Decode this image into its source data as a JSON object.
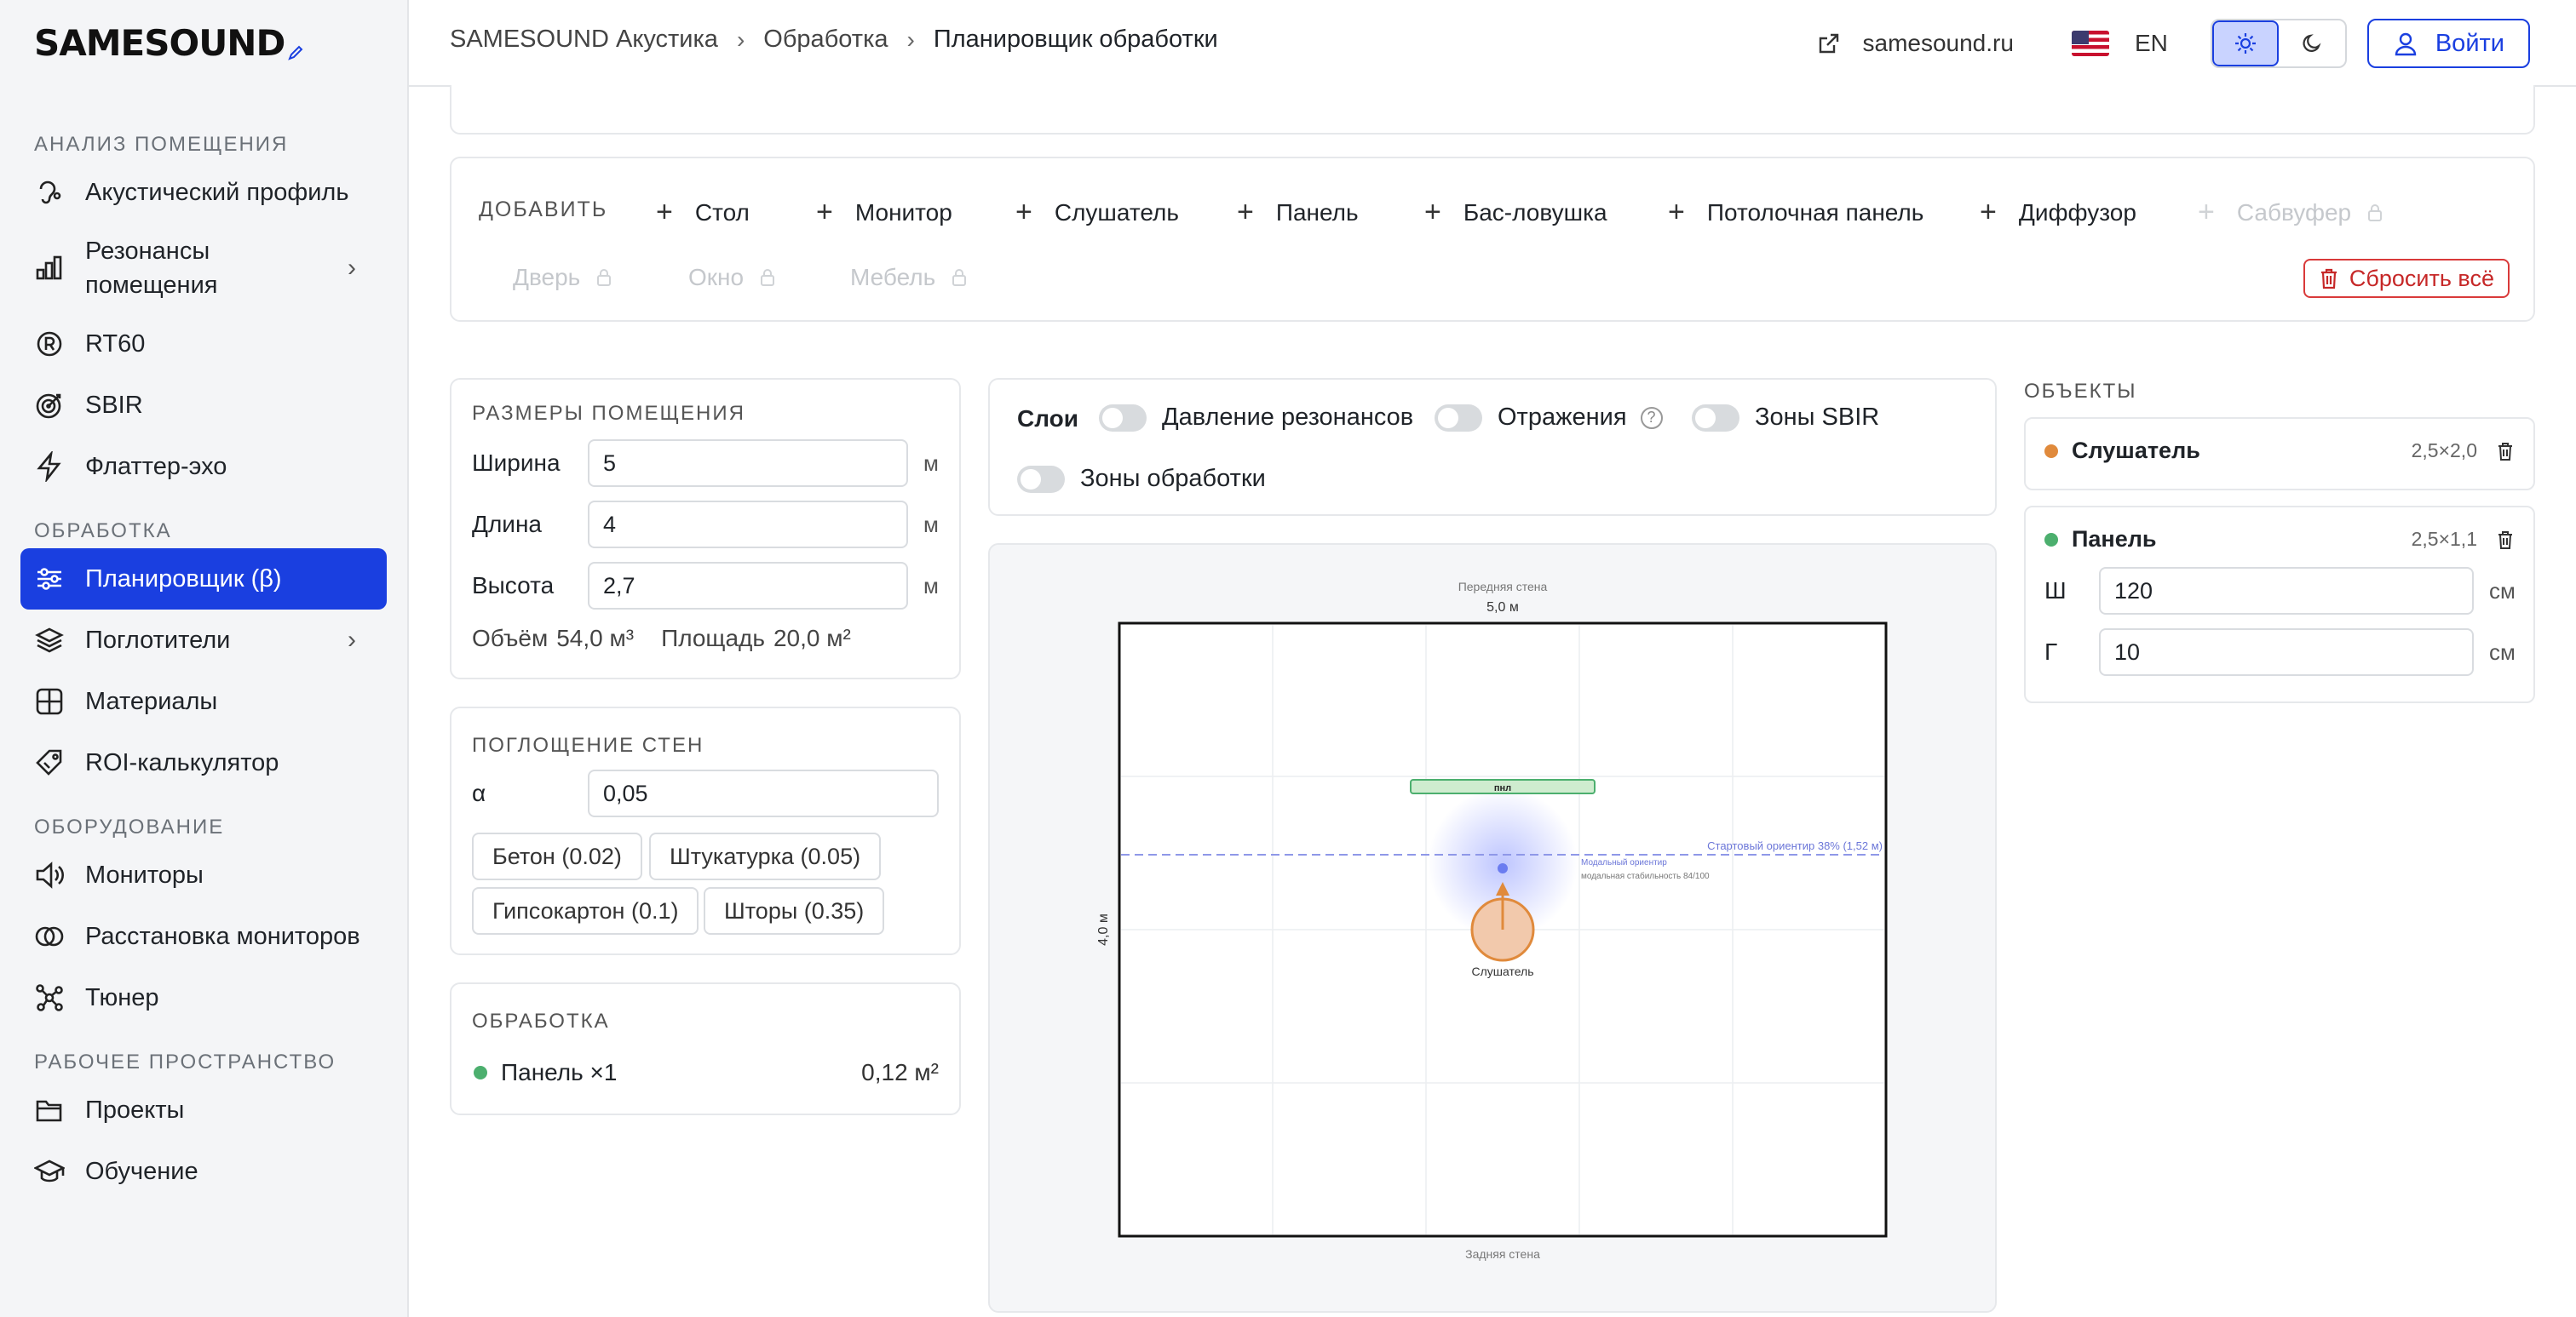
{
  "brand": "SAMESOUND",
  "sidebar": {
    "sections": [
      {
        "title": "АНАЛИЗ ПОМЕЩЕНИЯ",
        "items": [
          {
            "label": "Акустический профиль",
            "icon": "ear-icon"
          },
          {
            "label": "Резонансы помещения",
            "icon": "bar-chart-icon",
            "expandable": true
          },
          {
            "label": "RT60",
            "icon": "r-circle-icon"
          },
          {
            "label": "SBIR",
            "icon": "target-icon"
          },
          {
            "label": "Флаттер-эхо",
            "icon": "lightning-icon"
          }
        ]
      },
      {
        "title": "ОБРАБОТКА",
        "items": [
          {
            "label": "Планировщик (β)",
            "icon": "sliders-icon",
            "active": true
          },
          {
            "label": "Поглотители",
            "icon": "layers-icon",
            "expandable": true
          },
          {
            "label": "Материалы",
            "icon": "grid-icon"
          },
          {
            "label": "ROI-калькулятор",
            "icon": "tag-icon"
          }
        ]
      },
      {
        "title": "ОБОРУДОВАНИЕ",
        "items": [
          {
            "label": "Мониторы",
            "icon": "speaker-icon"
          },
          {
            "label": "Расстановка мониторов",
            "icon": "rings-icon"
          },
          {
            "label": "Тюнер",
            "icon": "nodes-icon"
          }
        ]
      },
      {
        "title": "РАБОЧЕЕ ПРОСТРАНСТВО",
        "items": [
          {
            "label": "Проекты",
            "icon": "folder-icon"
          },
          {
            "label": "Обучение",
            "icon": "graduation-cap-icon"
          }
        ]
      }
    ]
  },
  "header": {
    "breadcrumb": [
      "SAMESOUND Акустика",
      "Обработка",
      "Планировщик обработки"
    ],
    "site_link": "samesound.ru",
    "lang": "EN",
    "login": "Войти"
  },
  "add_bar": {
    "label": "ДОБАВИТЬ",
    "items": [
      {
        "label": "Стол",
        "enabled": true
      },
      {
        "label": "Монитор",
        "enabled": true
      },
      {
        "label": "Слушатель",
        "enabled": true
      },
      {
        "label": "Панель",
        "enabled": true
      },
      {
        "label": "Бас-ловушка",
        "enabled": true
      },
      {
        "label": "Потолочная панель",
        "enabled": true
      },
      {
        "label": "Диффузор",
        "enabled": true
      },
      {
        "label": "Сабвуфер",
        "enabled": false
      },
      {
        "label": "Дверь",
        "enabled": false
      },
      {
        "label": "Окно",
        "enabled": false
      },
      {
        "label": "Мебель",
        "enabled": false
      }
    ],
    "reset": "Сбросить всё"
  },
  "room": {
    "title": "РАЗМЕРЫ ПОМЕЩЕНИЯ",
    "width_label": "Ширина",
    "width": "5",
    "length_label": "Длина",
    "length": "4",
    "height_label": "Высота",
    "height": "2,7",
    "unit": "м",
    "volume_label": "Объём",
    "volume": "54,0 м³",
    "area_label": "Площадь",
    "area": "20,0 м²"
  },
  "absorption": {
    "title": "ПОГЛОЩЕНИЕ СТЕН",
    "alpha_label": "α",
    "alpha": "0,05",
    "presets": [
      "Бетон (0.02)",
      "Штукатурка (0.05)",
      "Гипсокартон (0.1)",
      "Шторы (0.35)"
    ]
  },
  "treatment": {
    "title": "ОБРАБОТКА",
    "item": "Панель ×1",
    "area": "0,12 м²",
    "color": "#4caf6e"
  },
  "layers": {
    "title": "Слои",
    "toggles": [
      "Давление резонансов",
      "Отражения",
      "Зоны SBIR",
      "Зоны обработки"
    ],
    "help": "?"
  },
  "plan": {
    "front_wall": "Передняя стена",
    "width_dim": "5,0 м",
    "length_dim": "4,0 м",
    "back_wall": "Задняя стена",
    "panel_label": "пнл",
    "guide_label": "Стартовый ориентир 38% (1,52 м)",
    "modal_label": "Модальный ориентир",
    "modal_stability": "модальная стабильность 84/100",
    "listener_label": "Слушатель"
  },
  "objects": {
    "title": "ОБЪЕКТЫ",
    "items": [
      {
        "name": "Слушатель",
        "pos": "2,5×2,0",
        "color": "#e08a3c"
      },
      {
        "name": "Панель",
        "pos": "2,5×1,1",
        "color": "#4caf6e",
        "w_label": "Ш",
        "w": "120",
        "d_label": "Г",
        "d": "10",
        "unit": "см"
      }
    ]
  },
  "colors": {
    "accent": "#1a3fe0",
    "danger": "#c62828",
    "listener": "#e08a3c",
    "panel": "#4caf6e"
  }
}
